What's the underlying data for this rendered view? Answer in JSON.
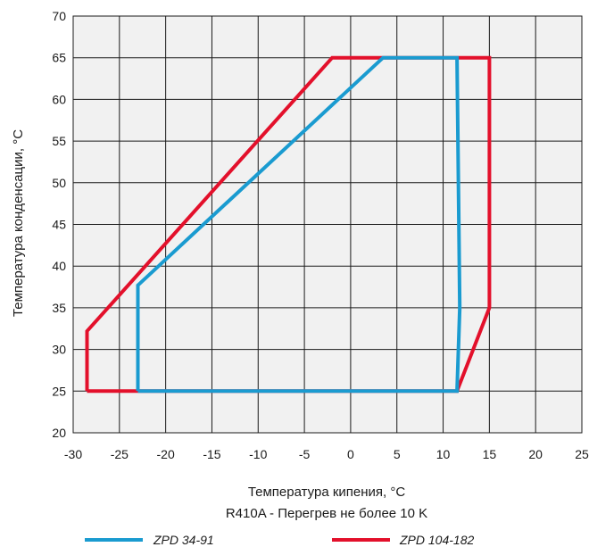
{
  "chart_data": {
    "type": "line",
    "title": "",
    "xlabel": "Температура кипения, °C",
    "subtitle": "R410A - Перегрев не более 10 K",
    "ylabel": "Температура конденсации, °C",
    "xlim": [
      -30,
      25
    ],
    "ylim": [
      20,
      70
    ],
    "x_ticks": [
      -30,
      -25,
      -20,
      -15,
      -10,
      -5,
      0,
      5,
      10,
      15,
      20,
      25
    ],
    "y_ticks": [
      20,
      25,
      30,
      35,
      40,
      45,
      50,
      55,
      60,
      65,
      70
    ],
    "grid": true,
    "legend_position": "bottom",
    "series": [
      {
        "name": "ZPD 34-91",
        "color": "#1a9bd0",
        "points": [
          [
            -23,
            25
          ],
          [
            11.5,
            25
          ],
          [
            11.8,
            35
          ],
          [
            11.5,
            65
          ],
          [
            3.5,
            65
          ],
          [
            -23,
            37.7
          ],
          [
            -23,
            25
          ]
        ]
      },
      {
        "name": "ZPD 104-182",
        "color": "#e3102b",
        "points": [
          [
            -28.5,
            25
          ],
          [
            11.5,
            25
          ],
          [
            15,
            35
          ],
          [
            15,
            65
          ],
          [
            -2,
            65
          ],
          [
            -28.5,
            32.2
          ],
          [
            -28.5,
            25
          ]
        ]
      }
    ]
  }
}
